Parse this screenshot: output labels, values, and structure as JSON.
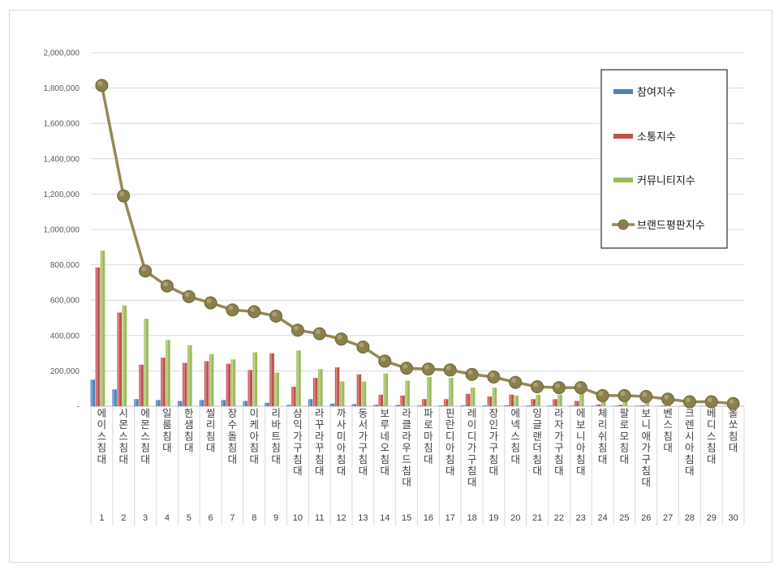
{
  "chart_data": {
    "type": "bar",
    "title": "",
    "xlabel": "",
    "ylabel": "",
    "ylim": [
      0,
      2000000
    ],
    "yticks": [
      "-",
      "200,000",
      "400,000",
      "600,000",
      "800,000",
      "1,000,000",
      "1,200,000",
      "1,400,000",
      "1,600,000",
      "1,800,000",
      "2,000,000"
    ],
    "grid": true,
    "legend_position": "top-right",
    "numbers": [
      "1",
      "2",
      "3",
      "4",
      "5",
      "6",
      "7",
      "8",
      "9",
      "10",
      "11",
      "12",
      "13",
      "14",
      "15",
      "16",
      "17",
      "18",
      "19",
      "20",
      "21",
      "22",
      "23",
      "24",
      "25",
      "26",
      "27",
      "28",
      "29",
      "30"
    ],
    "categories": [
      "에이스침대",
      "시몬스침대",
      "에몬스침대",
      "일룸침대",
      "한샘침대",
      "씰리침대",
      "장수돌침대",
      "이케아침대",
      "리바트침대",
      "삼익가구침대",
      "라꾸라꾸침대",
      "까사미아침대",
      "동서가구침대",
      "보루네오침대",
      "라클라우드침대",
      "파로마침대",
      "핀란디아침대",
      "레이디가구침대",
      "장인가구침대",
      "에넥스침대",
      "잉글랜더침대",
      "라자가구침대",
      "에보니아침대",
      "체리쉬침대",
      "팔로모침대",
      "보니애가구침대",
      "벤스침대",
      "크렌시아침대",
      "베디스침대",
      "올쏘침대"
    ],
    "series": [
      {
        "name": "참여지수",
        "type": "bar",
        "color": "#4f81bd",
        "values": [
          150000,
          95000,
          40000,
          35000,
          30000,
          35000,
          35000,
          30000,
          20000,
          8000,
          40000,
          15000,
          12000,
          8000,
          8000,
          5000,
          5000,
          5000,
          5000,
          5000,
          4000,
          4000,
          4000,
          3000,
          3000,
          3000,
          2000,
          2000,
          2000,
          1000
        ]
      },
      {
        "name": "소통지수",
        "type": "bar",
        "color": "#c0504d",
        "values": [
          785000,
          530000,
          235000,
          275000,
          245000,
          255000,
          240000,
          205000,
          300000,
          110000,
          160000,
          220000,
          180000,
          65000,
          60000,
          40000,
          40000,
          70000,
          55000,
          65000,
          40000,
          40000,
          30000,
          10000,
          8000,
          5000,
          5000,
          3000,
          3000,
          2000
        ]
      },
      {
        "name": "커뮤니티지수",
        "type": "bar",
        "color": "#9bbb59",
        "values": [
          880000,
          570000,
          495000,
          375000,
          345000,
          295000,
          265000,
          305000,
          190000,
          315000,
          210000,
          140000,
          140000,
          185000,
          145000,
          165000,
          160000,
          105000,
          105000,
          60000,
          65000,
          65000,
          70000,
          45000,
          45000,
          45000,
          35000,
          18000,
          18000,
          12000
        ]
      },
      {
        "name": "브랜드평판지수",
        "type": "line",
        "color": "#948a54",
        "marker_color": "#8b7f4b",
        "values": [
          1815000,
          1190000,
          765000,
          680000,
          620000,
          585000,
          545000,
          535000,
          510000,
          430000,
          410000,
          380000,
          335000,
          255000,
          215000,
          210000,
          205000,
          180000,
          165000,
          135000,
          110000,
          105000,
          105000,
          60000,
          60000,
          55000,
          40000,
          25000,
          25000,
          15000
        ]
      }
    ]
  }
}
